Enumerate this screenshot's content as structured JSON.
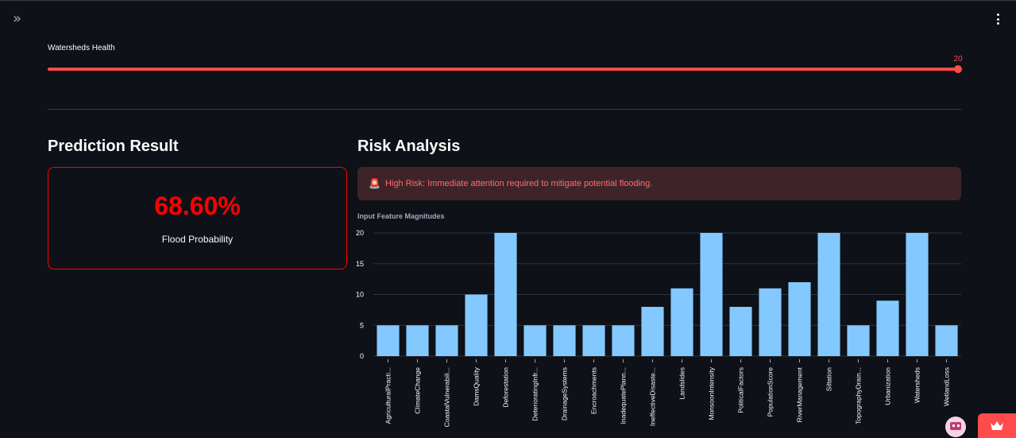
{
  "header": {
    "sidebar_toggle_glyph": "»",
    "menu_icon": "kebab-menu-icon"
  },
  "slider": {
    "label": "Watersheds Health",
    "value": "20",
    "value_fraction": 1.0,
    "accent": "#ff4b4b"
  },
  "prediction": {
    "heading": "Prediction Result",
    "value": "68.60%",
    "label": "Flood Probability",
    "color": "#ff0000"
  },
  "risk": {
    "heading": "Risk Analysis",
    "alert_icon": "🚨",
    "alert_text": "High Risk: Immediate attention required to mitigate potential flooding.",
    "alert_color": "#ff6c6c"
  },
  "chart_data": {
    "type": "bar",
    "title": "Input Feature Magnitudes",
    "categories": [
      "AgriculturalPracti...",
      "ClimateChange",
      "CoastalVulnerabili...",
      "DamsQuality",
      "Deforestation",
      "DeterioratingInfr...",
      "DrainageSystems",
      "Encroachments",
      "InadequatePlann...",
      "IneffectiveDisaste...",
      "Landslides",
      "MonsoonIntensity",
      "PoliticalFactors",
      "PopulationScore",
      "RiverManagement",
      "Siltation",
      "TopographyDrain...",
      "Urbanization",
      "Watersheds",
      "WetlandLoss"
    ],
    "values": [
      5,
      5,
      5,
      10,
      20,
      5,
      5,
      5,
      5,
      8,
      11,
      20,
      8,
      11,
      12,
      20,
      5,
      9,
      20,
      5
    ],
    "yticks": [
      "0",
      "5",
      "10",
      "15",
      "20"
    ],
    "ylim": [
      0,
      20
    ],
    "grid": true,
    "bar_color": "#83c9ff"
  }
}
